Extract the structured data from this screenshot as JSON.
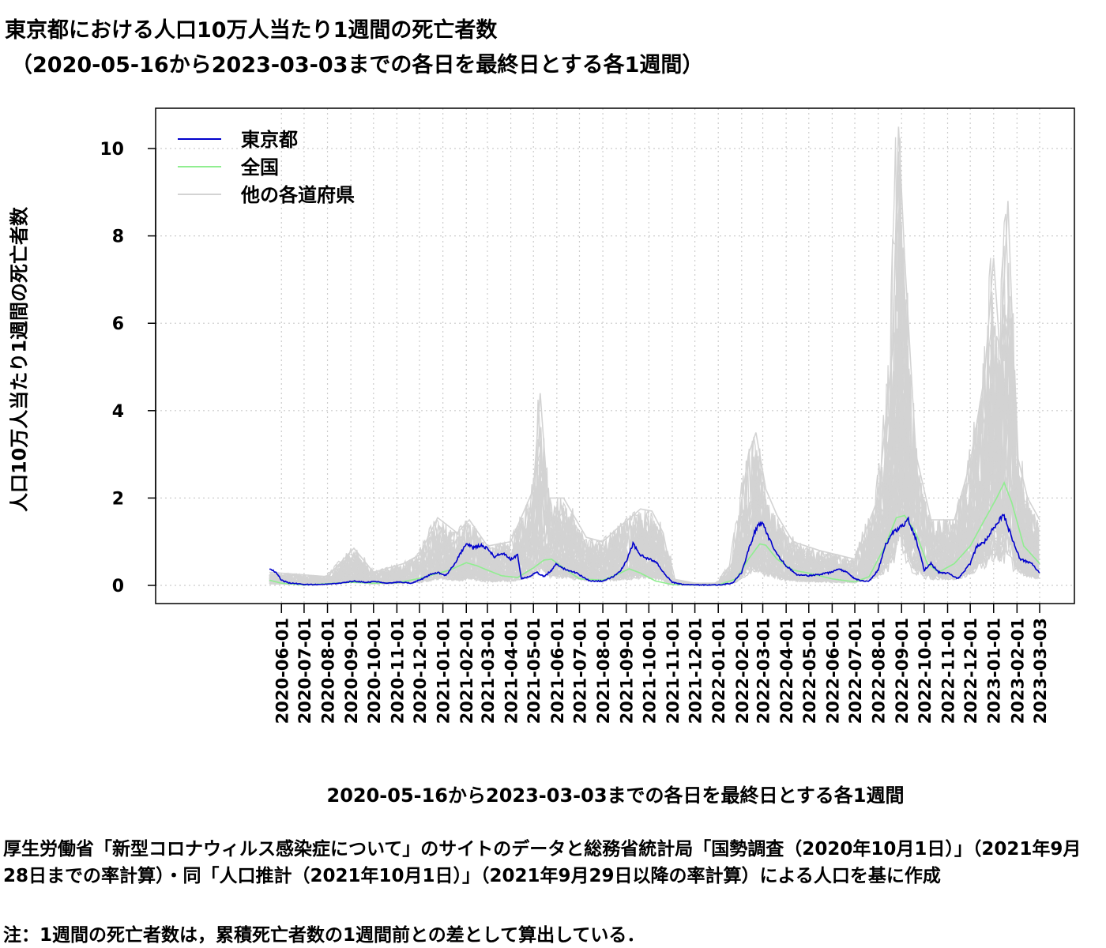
{
  "chart_data": {
    "type": "line",
    "title": "東京都における人口10万人当たり1週間の死亡者数",
    "subtitle": "（2020-05-16から2023-03-03までの各日を最終日とする各1週間）",
    "xlabel": "2020-05-16から2023-03-03までの各日を最終日とする各1週間",
    "ylabel": "人口10万人当たり1週間の死亡者数",
    "x_range": [
      "2020-05-16",
      "2023-03-03"
    ],
    "ylim": [
      -0.4,
      10.9
    ],
    "y_ticks": [
      0,
      2,
      4,
      6,
      8,
      10
    ],
    "x_ticks": [
      "2020-06-01",
      "2020-07-01",
      "2020-08-01",
      "2020-09-01",
      "2020-10-01",
      "2020-11-01",
      "2020-12-01",
      "2021-01-01",
      "2021-02-01",
      "2021-03-01",
      "2021-04-01",
      "2021-05-01",
      "2021-06-01",
      "2021-07-01",
      "2021-08-01",
      "2021-09-01",
      "2021-10-01",
      "2021-11-01",
      "2021-12-01",
      "2022-01-01",
      "2022-02-01",
      "2022-03-01",
      "2022-04-01",
      "2022-05-01",
      "2022-06-01",
      "2022-07-01",
      "2022-08-01",
      "2022-09-01",
      "2022-10-01",
      "2022-11-01",
      "2022-12-01",
      "2023-01-01",
      "2023-02-01",
      "2023-03-03"
    ],
    "grid": true,
    "legend_position": "top-left",
    "series": [
      {
        "name": "東京都",
        "color": "#0000cc",
        "points": [
          [
            "2020-05-16",
            0.38
          ],
          [
            "2020-05-25",
            0.3
          ],
          [
            "2020-06-01",
            0.12
          ],
          [
            "2020-06-10",
            0.06
          ],
          [
            "2020-07-01",
            0.02
          ],
          [
            "2020-07-15",
            0.02
          ],
          [
            "2020-08-01",
            0.03
          ],
          [
            "2020-08-20",
            0.05
          ],
          [
            "2020-09-05",
            0.1
          ],
          [
            "2020-09-20",
            0.07
          ],
          [
            "2020-10-05",
            0.09
          ],
          [
            "2020-10-20",
            0.05
          ],
          [
            "2020-11-05",
            0.08
          ],
          [
            "2020-11-20",
            0.05
          ],
          [
            "2020-12-05",
            0.15
          ],
          [
            "2020-12-15",
            0.25
          ],
          [
            "2020-12-25",
            0.3
          ],
          [
            "2021-01-05",
            0.22
          ],
          [
            "2021-01-15",
            0.45
          ],
          [
            "2021-01-25",
            0.75
          ],
          [
            "2021-02-01",
            0.98
          ],
          [
            "2021-02-10",
            0.85
          ],
          [
            "2021-02-20",
            0.92
          ],
          [
            "2021-03-01",
            0.85
          ],
          [
            "2021-03-10",
            0.65
          ],
          [
            "2021-03-20",
            0.75
          ],
          [
            "2021-04-01",
            0.6
          ],
          [
            "2021-04-10",
            0.7
          ],
          [
            "2021-04-15",
            0.15
          ],
          [
            "2021-04-25",
            0.2
          ],
          [
            "2021-05-05",
            0.3
          ],
          [
            "2021-05-15",
            0.2
          ],
          [
            "2021-05-25",
            0.35
          ],
          [
            "2021-06-01",
            0.5
          ],
          [
            "2021-06-10",
            0.38
          ],
          [
            "2021-06-25",
            0.3
          ],
          [
            "2021-07-05",
            0.2
          ],
          [
            "2021-07-15",
            0.1
          ],
          [
            "2021-08-01",
            0.1
          ],
          [
            "2021-08-15",
            0.2
          ],
          [
            "2021-08-25",
            0.35
          ],
          [
            "2021-09-01",
            0.55
          ],
          [
            "2021-09-10",
            0.95
          ],
          [
            "2021-09-20",
            0.7
          ],
          [
            "2021-10-01",
            0.6
          ],
          [
            "2021-10-10",
            0.55
          ],
          [
            "2021-10-20",
            0.3
          ],
          [
            "2021-11-01",
            0.07
          ],
          [
            "2021-11-15",
            0.02
          ],
          [
            "2021-12-01",
            0.01
          ],
          [
            "2022-01-01",
            0.01
          ],
          [
            "2022-01-20",
            0.05
          ],
          [
            "2022-02-01",
            0.3
          ],
          [
            "2022-02-10",
            0.8
          ],
          [
            "2022-02-20",
            1.3
          ],
          [
            "2022-02-28",
            1.45
          ],
          [
            "2022-03-10",
            1.05
          ],
          [
            "2022-03-20",
            0.7
          ],
          [
            "2022-04-01",
            0.45
          ],
          [
            "2022-04-15",
            0.25
          ],
          [
            "2022-05-01",
            0.22
          ],
          [
            "2022-05-15",
            0.25
          ],
          [
            "2022-06-01",
            0.3
          ],
          [
            "2022-06-10",
            0.38
          ],
          [
            "2022-06-20",
            0.3
          ],
          [
            "2022-07-01",
            0.15
          ],
          [
            "2022-07-10",
            0.1
          ],
          [
            "2022-07-20",
            0.1
          ],
          [
            "2022-08-01",
            0.35
          ],
          [
            "2022-08-10",
            0.9
          ],
          [
            "2022-08-20",
            1.2
          ],
          [
            "2022-09-01",
            1.35
          ],
          [
            "2022-09-10",
            1.5
          ],
          [
            "2022-09-20",
            1.05
          ],
          [
            "2022-10-01",
            0.35
          ],
          [
            "2022-10-10",
            0.5
          ],
          [
            "2022-10-20",
            0.3
          ],
          [
            "2022-11-01",
            0.28
          ],
          [
            "2022-11-15",
            0.15
          ],
          [
            "2022-12-01",
            0.5
          ],
          [
            "2022-12-10",
            0.9
          ],
          [
            "2022-12-20",
            1.0
          ],
          [
            "2023-01-01",
            1.3
          ],
          [
            "2023-01-10",
            1.55
          ],
          [
            "2023-01-15",
            1.58
          ],
          [
            "2023-01-25",
            1.1
          ],
          [
            "2023-02-05",
            0.6
          ],
          [
            "2023-02-20",
            0.5
          ],
          [
            "2023-03-03",
            0.3
          ]
        ]
      },
      {
        "name": "全国",
        "color": "#90ee90",
        "points": [
          [
            "2020-05-16",
            0.12
          ],
          [
            "2020-06-01",
            0.05
          ],
          [
            "2020-07-01",
            0.01
          ],
          [
            "2020-08-01",
            0.04
          ],
          [
            "2020-09-01",
            0.07
          ],
          [
            "2020-10-01",
            0.05
          ],
          [
            "2020-11-01",
            0.06
          ],
          [
            "2020-12-01",
            0.16
          ],
          [
            "2020-12-20",
            0.25
          ],
          [
            "2021-01-10",
            0.35
          ],
          [
            "2021-02-01",
            0.52
          ],
          [
            "2021-02-15",
            0.45
          ],
          [
            "2021-03-01",
            0.35
          ],
          [
            "2021-03-20",
            0.22
          ],
          [
            "2021-04-10",
            0.18
          ],
          [
            "2021-05-01",
            0.4
          ],
          [
            "2021-05-15",
            0.58
          ],
          [
            "2021-05-25",
            0.6
          ],
          [
            "2021-06-10",
            0.4
          ],
          [
            "2021-07-01",
            0.15
          ],
          [
            "2021-08-01",
            0.12
          ],
          [
            "2021-08-20",
            0.25
          ],
          [
            "2021-09-05",
            0.38
          ],
          [
            "2021-09-20",
            0.28
          ],
          [
            "2021-10-10",
            0.1
          ],
          [
            "2021-11-01",
            0.02
          ],
          [
            "2021-12-01",
            0.01
          ],
          [
            "2022-01-01",
            0.01
          ],
          [
            "2022-01-25",
            0.15
          ],
          [
            "2022-02-10",
            0.6
          ],
          [
            "2022-02-25",
            0.95
          ],
          [
            "2022-03-05",
            0.92
          ],
          [
            "2022-03-20",
            0.6
          ],
          [
            "2022-04-10",
            0.35
          ],
          [
            "2022-05-01",
            0.28
          ],
          [
            "2022-06-01",
            0.15
          ],
          [
            "2022-07-01",
            0.08
          ],
          [
            "2022-07-20",
            0.2
          ],
          [
            "2022-08-10",
            0.9
          ],
          [
            "2022-08-25",
            1.55
          ],
          [
            "2022-09-05",
            1.6
          ],
          [
            "2022-09-20",
            1.2
          ],
          [
            "2022-10-05",
            0.5
          ],
          [
            "2022-10-20",
            0.3
          ],
          [
            "2022-11-10",
            0.5
          ],
          [
            "2022-12-01",
            0.9
          ],
          [
            "2022-12-20",
            1.5
          ],
          [
            "2023-01-05",
            2.0
          ],
          [
            "2023-01-15",
            2.35
          ],
          [
            "2023-01-25",
            1.9
          ],
          [
            "2023-02-10",
            0.9
          ],
          [
            "2023-03-03",
            0.5
          ]
        ]
      },
      {
        "name": "他の各道府県",
        "color": "#d3d3d3",
        "envelope": [
          [
            "2020-05-16",
            0.3
          ],
          [
            "2020-08-01",
            0.2
          ],
          [
            "2020-09-05",
            0.85
          ],
          [
            "2020-10-01",
            0.3
          ],
          [
            "2020-11-10",
            0.5
          ],
          [
            "2020-12-01",
            0.7
          ],
          [
            "2020-12-25",
            1.55
          ],
          [
            "2021-01-20",
            1.2
          ],
          [
            "2021-02-05",
            1.5
          ],
          [
            "2021-03-01",
            0.9
          ],
          [
            "2021-04-01",
            1.0
          ],
          [
            "2021-05-01",
            2.2
          ],
          [
            "2021-05-10",
            4.4
          ],
          [
            "2021-05-20",
            2.0
          ],
          [
            "2021-06-10",
            2.0
          ],
          [
            "2021-07-10",
            1.1
          ],
          [
            "2021-08-01",
            1.0
          ],
          [
            "2021-08-20",
            1.3
          ],
          [
            "2021-09-10",
            1.6
          ],
          [
            "2021-09-20",
            1.75
          ],
          [
            "2021-10-05",
            1.7
          ],
          [
            "2021-10-20",
            1.2
          ],
          [
            "2021-11-01",
            0.15
          ],
          [
            "2021-12-01",
            0.05
          ],
          [
            "2022-01-01",
            0.05
          ],
          [
            "2022-01-20",
            0.5
          ],
          [
            "2022-02-10",
            3.0
          ],
          [
            "2022-02-20",
            3.5
          ],
          [
            "2022-03-05",
            2.2
          ],
          [
            "2022-03-20",
            1.6
          ],
          [
            "2022-04-10",
            1.0
          ],
          [
            "2022-05-15",
            0.8
          ],
          [
            "2022-07-01",
            0.6
          ],
          [
            "2022-08-01",
            2.0
          ],
          [
            "2022-08-20",
            5.4
          ],
          [
            "2022-08-28",
            10.5
          ],
          [
            "2022-09-05",
            7.5
          ],
          [
            "2022-09-20",
            3.0
          ],
          [
            "2022-10-10",
            1.5
          ],
          [
            "2022-11-10",
            1.5
          ],
          [
            "2022-12-01",
            2.8
          ],
          [
            "2022-12-20",
            4.8
          ],
          [
            "2023-01-01",
            7.5
          ],
          [
            "2023-01-10",
            5.2
          ],
          [
            "2023-01-20",
            8.8
          ],
          [
            "2023-02-01",
            3.0
          ],
          [
            "2023-02-15",
            2.0
          ],
          [
            "2023-03-03",
            1.5
          ]
        ]
      }
    ]
  },
  "caption": "厚生労働省「新型コロナウィルス感染症について」のサイトのデータと総務省統計局「国勢調査（2020年10月1日）」（2021年9月28日までの率計算）・同「人口推計（2021年10月1日）」（2021年9月29日以降の率計算）による人口を基に作成",
  "note": "注：1週間の死亡者数は，累積死亡者数の1週間前との差として算出している．"
}
